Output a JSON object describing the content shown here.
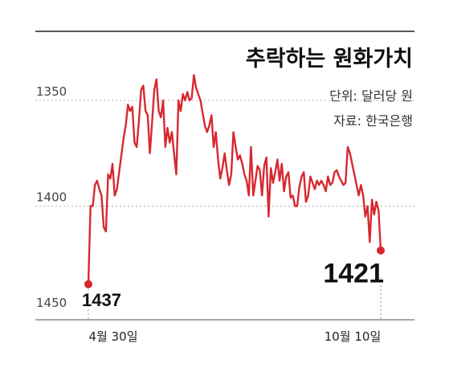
{
  "chart_data": {
    "type": "line",
    "title": "추락하는 원화가치",
    "unit_note": "단위: 달러당 원",
    "source_note": "자료: 한국은행",
    "y_axis": {
      "ticks": [
        1350,
        1400,
        1450
      ],
      "range": [
        1325,
        1460
      ],
      "inverted": true
    },
    "x_tick_labels": [
      "4월 30일",
      "10월 10일"
    ],
    "series": [
      {
        "color": "#d8282f",
        "values": [
          1437,
          1400,
          1400,
          1390,
          1388,
          1392,
          1395,
          1410,
          1412,
          1385,
          1387,
          1380,
          1395,
          1392,
          1384,
          1376,
          1368,
          1362,
          1352,
          1355,
          1353,
          1370,
          1372,
          1360,
          1345,
          1343,
          1355,
          1357,
          1375,
          1360,
          1345,
          1340,
          1355,
          1358,
          1350,
          1372,
          1363,
          1370,
          1365,
          1375,
          1385,
          1350,
          1355,
          1347,
          1350,
          1346,
          1350,
          1349,
          1338,
          1344,
          1347,
          1350,
          1356,
          1362,
          1365,
          1362,
          1357,
          1372,
          1365,
          1378,
          1387,
          1382,
          1375,
          1383,
          1390,
          1385,
          1365,
          1372,
          1378,
          1376,
          1380,
          1385,
          1388,
          1395,
          1372,
          1395,
          1388,
          1381,
          1383,
          1395,
          1381,
          1377,
          1405,
          1382,
          1389,
          1384,
          1378,
          1388,
          1380,
          1393,
          1386,
          1384,
          1396,
          1395,
          1400,
          1400,
          1391,
          1386,
          1384,
          1398,
          1395,
          1386,
          1389,
          1392,
          1388,
          1390,
          1388,
          1390,
          1393,
          1386,
          1390,
          1389,
          1384,
          1383,
          1386,
          1388,
          1390,
          1389,
          1372,
          1375,
          1380,
          1385,
          1390,
          1395,
          1390,
          1395,
          1405,
          1400,
          1417,
          1397,
          1404,
          1398,
          1402,
          1421
        ]
      }
    ],
    "annotations": [
      {
        "text": "1437",
        "at": "start"
      },
      {
        "text": "1421",
        "at": "end"
      }
    ],
    "grid": true,
    "legend": "none"
  }
}
